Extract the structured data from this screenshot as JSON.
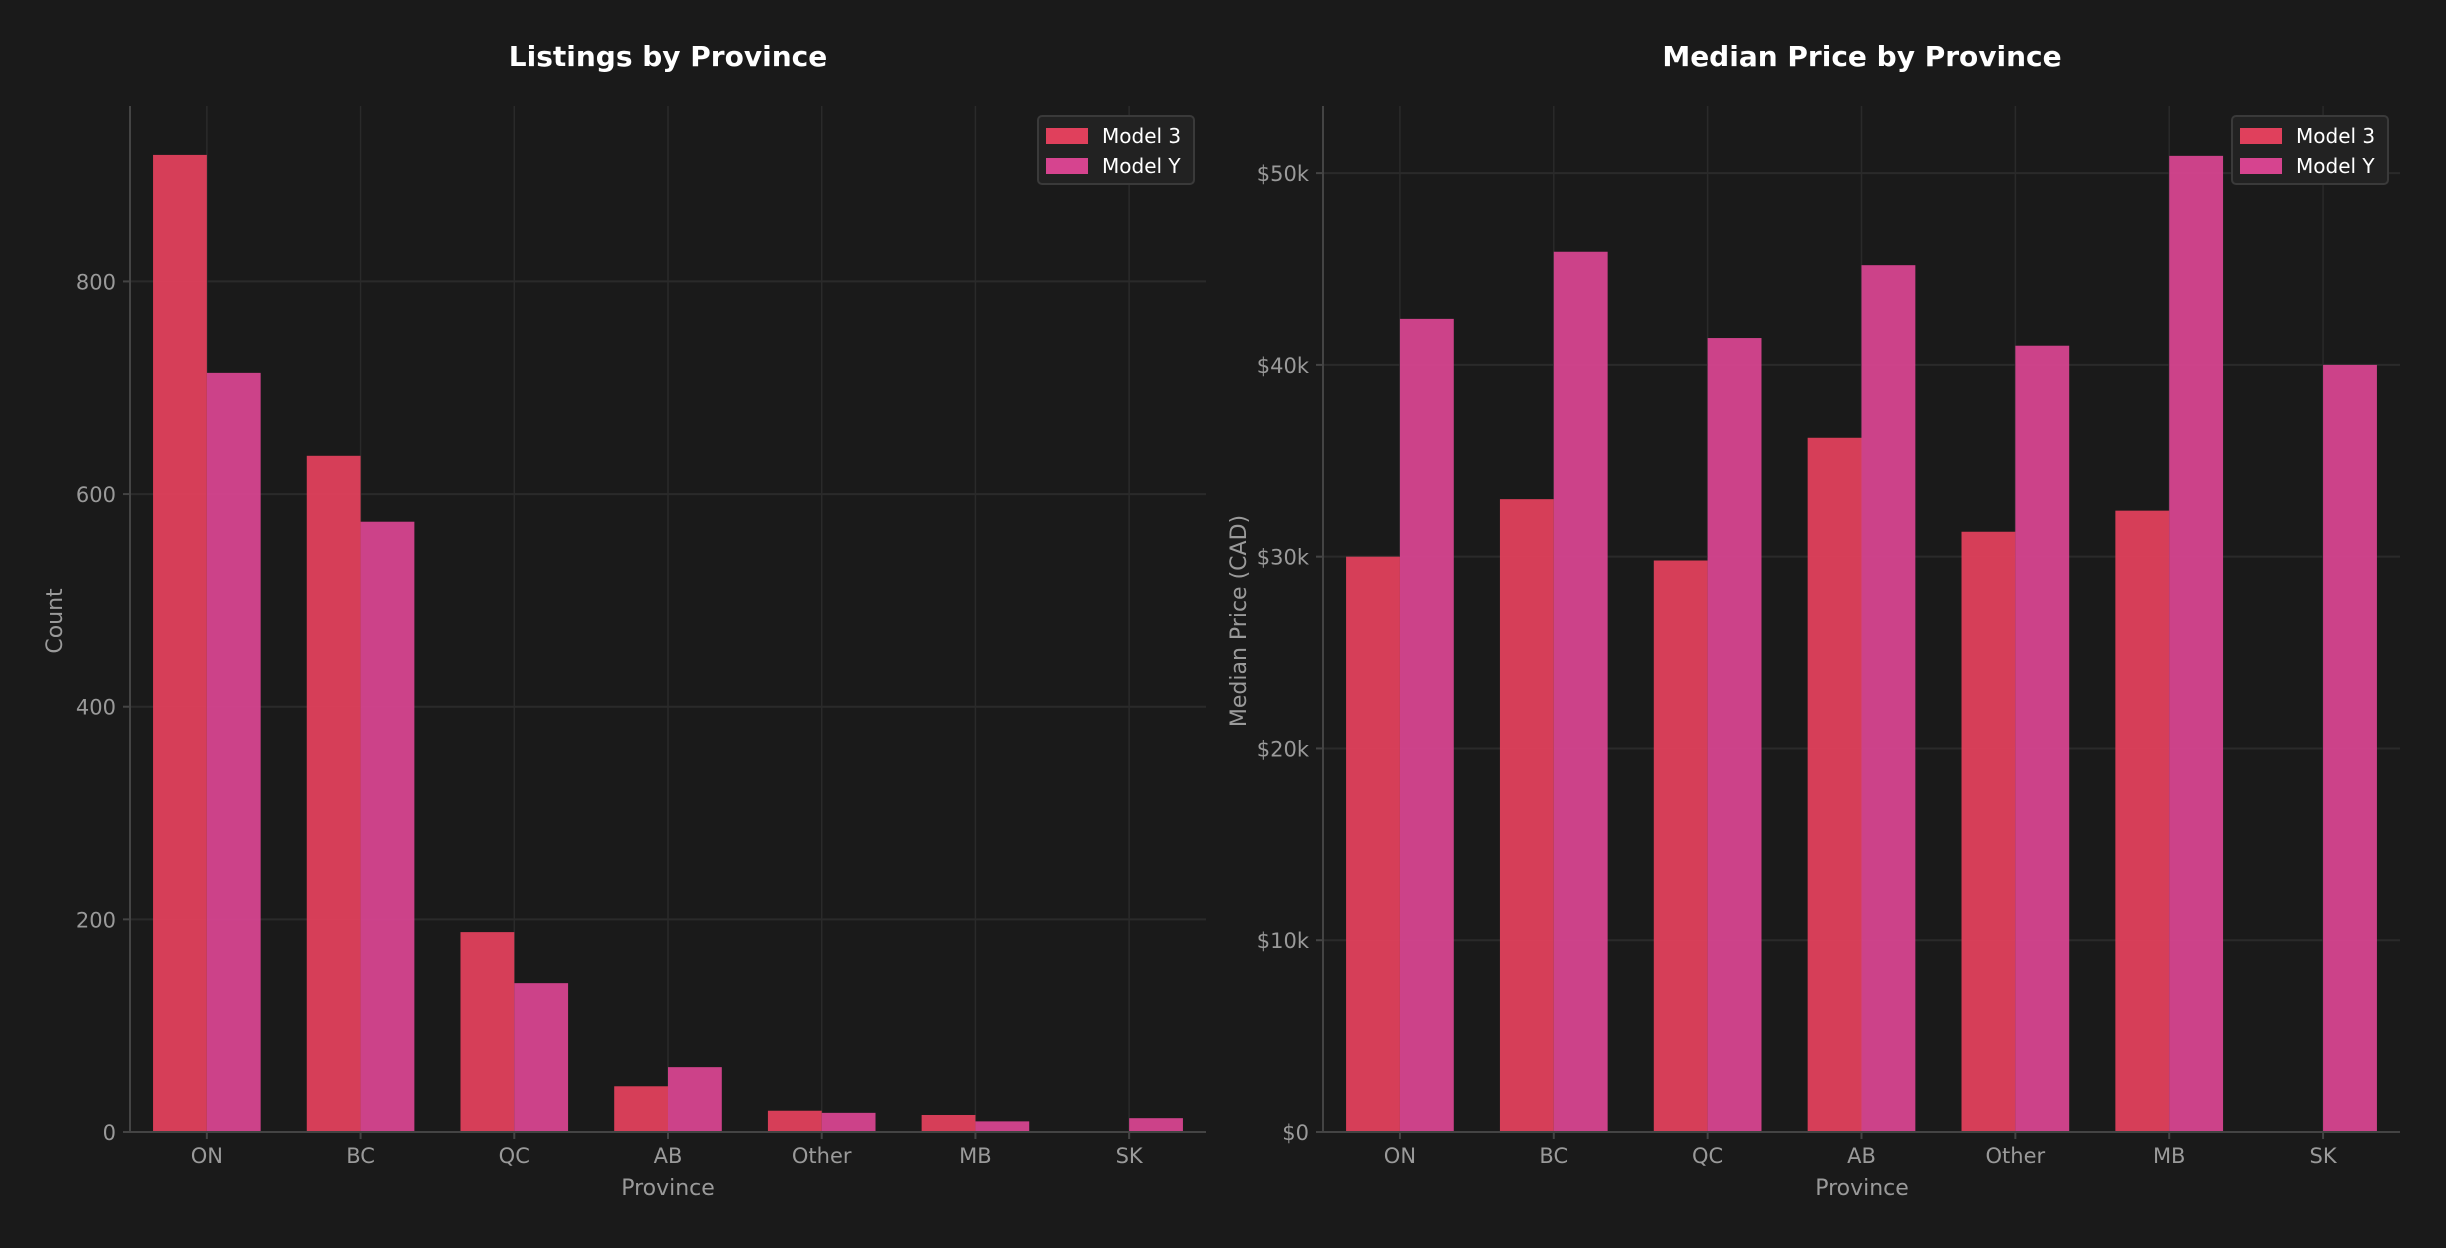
{
  "colors": {
    "background": "#1a1a1a",
    "model3": "#e0405c",
    "modelY": "#d6448f",
    "grid": "#2a2a2a",
    "axis": "#444444",
    "tick_text": "#9a9a9a",
    "title": "#ffffff"
  },
  "chart_data": [
    {
      "type": "bar",
      "title": "Listings by Province",
      "xlabel": "Province",
      "ylabel": "Count",
      "categories": [
        "ON",
        "BC",
        "QC",
        "AB",
        "Other",
        "MB",
        "SK"
      ],
      "series": [
        {
          "name": "Model 3",
          "values": [
            919,
            636,
            188,
            43,
            20,
            16,
            0
          ]
        },
        {
          "name": "Model Y",
          "values": [
            714,
            574,
            140,
            61,
            18,
            10,
            13
          ]
        }
      ],
      "ylim": [
        0,
        965
      ],
      "yticks": [
        0,
        200,
        400,
        600,
        800
      ],
      "ytick_labels": [
        "0",
        "200",
        "400",
        "600",
        "800"
      ],
      "grid": true,
      "legend": {
        "placement": "top-right",
        "entries": [
          "Model 3",
          "Model Y"
        ]
      }
    },
    {
      "type": "bar",
      "title": "Median Price by Province",
      "xlabel": "Province",
      "ylabel": "Median Price (CAD)",
      "categories": [
        "ON",
        "BC",
        "QC",
        "AB",
        "Other",
        "MB",
        "SK"
      ],
      "series": [
        {
          "name": "Model 3",
          "values": [
            30000,
            33000,
            29800,
            36200,
            31300,
            32400,
            null
          ]
        },
        {
          "name": "Model Y",
          "values": [
            42400,
            45900,
            41400,
            45200,
            41000,
            50900,
            40000
          ]
        }
      ],
      "ylim": [
        0,
        53500
      ],
      "yticks": [
        0,
        10000,
        20000,
        30000,
        40000,
        50000
      ],
      "ytick_labels": [
        "$0",
        "$10k",
        "$20k",
        "$30k",
        "$40k",
        "$50k"
      ],
      "grid": true,
      "legend": {
        "placement": "top-right",
        "entries": [
          "Model 3",
          "Model Y"
        ]
      }
    }
  ]
}
